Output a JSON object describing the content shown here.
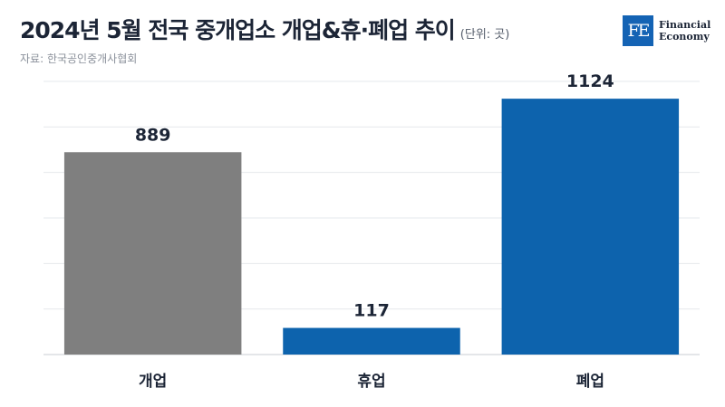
{
  "header": {
    "title": "2024년 5월 전국 중개업소 개업&휴·폐업 추이",
    "unit": "(단위: 곳)",
    "source": "자료: 한국공인중개사협회"
  },
  "brand": {
    "mark": "FE",
    "line1": "Financial",
    "line2": "Economy",
    "color": "#1463b4"
  },
  "chart_data": {
    "type": "bar",
    "title": "2024년 5월 전국 중개업소 개업&휴·폐업 추이",
    "categories": [
      "개업",
      "휴업",
      "폐업"
    ],
    "values": [
      889,
      117,
      1124
    ],
    "colors": [
      "#7f7f7f",
      "#0d63ad",
      "#0d63ad"
    ],
    "ylim": [
      0,
      1200
    ],
    "grid": true,
    "xlabel": "",
    "ylabel": ""
  }
}
